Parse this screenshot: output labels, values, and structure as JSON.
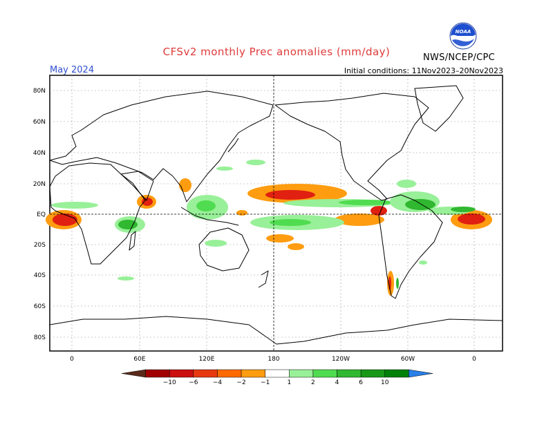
{
  "title": "CFSv2 monthly Prec anomalies (mm/day)",
  "month": "May 2024",
  "initial_conditions": "Initial conditions: 11Nov2023–20Nov2023",
  "agency": "NWS/NCEP/CPC",
  "logo_text": "NOAA",
  "lat_labels": [
    "80N",
    "60N",
    "40N",
    "20N",
    "EQ",
    "20S",
    "40S",
    "60S",
    "80S"
  ],
  "lon_labels": [
    "0",
    "60E",
    "120E",
    "180",
    "120W",
    "60W",
    "0"
  ],
  "colorbar": {
    "ticks": [
      "−10",
      "−6",
      "−4",
      "−2",
      "−1",
      "1",
      "2",
      "4",
      "6",
      "10"
    ],
    "colors": [
      "#5a2a1a",
      "#a00000",
      "#cc1010",
      "#e83a10",
      "#ff6a00",
      "#ff9c10",
      "#ffffff",
      "#98f098",
      "#50dc50",
      "#30b830",
      "#189818",
      "#008008",
      "#2880e8"
    ]
  },
  "colors": {
    "title": "#e03a3a",
    "month": "#3050d0",
    "dry_strong": "#e02010",
    "dry": "#ff9c10",
    "wet": "#98f098",
    "wet_mid": "#50dc50",
    "wet_strong": "#30b830"
  }
}
